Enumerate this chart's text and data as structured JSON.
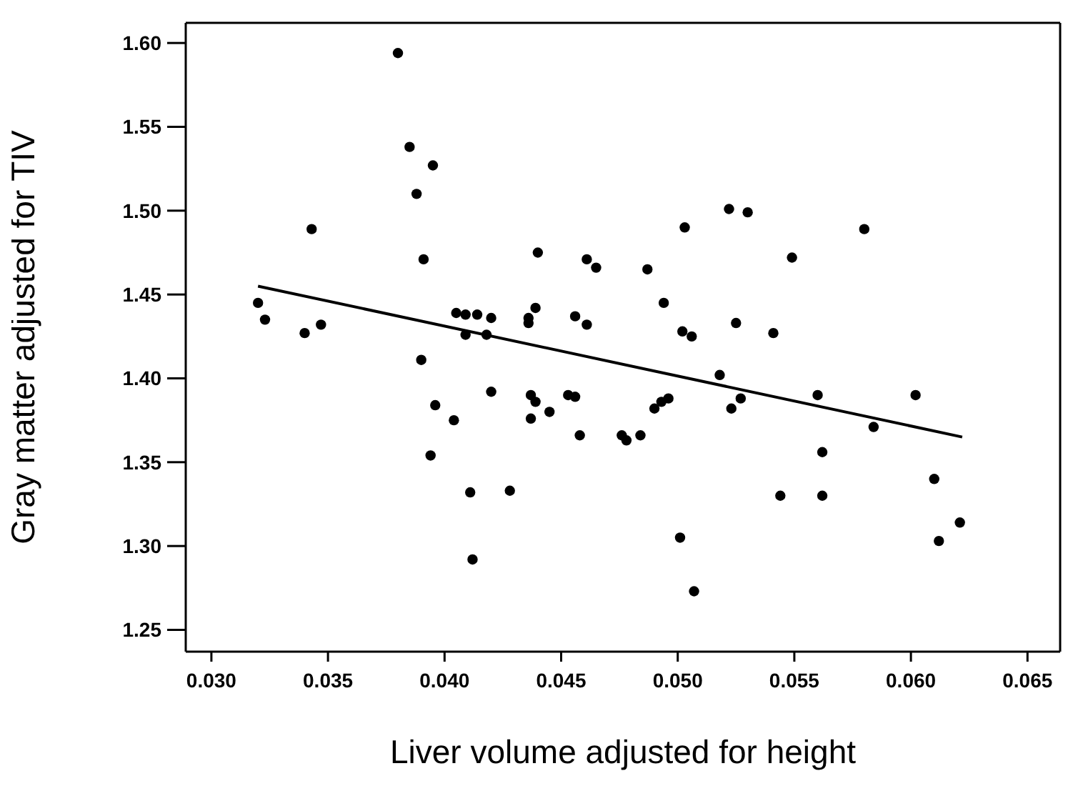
{
  "chart_data": {
    "type": "scatter",
    "xlabel": "Liver volume adjusted for height",
    "ylabel": "Gray matter adjusted for TIV",
    "xlim": [
      0.0289,
      0.0664
    ],
    "ylim": [
      1.237,
      1.612
    ],
    "xticks": [
      {
        "value": 0.03,
        "label": "0.030"
      },
      {
        "value": 0.035,
        "label": "0.035"
      },
      {
        "value": 0.04,
        "label": "0.040"
      },
      {
        "value": 0.045,
        "label": "0.045"
      },
      {
        "value": 0.05,
        "label": "0.050"
      },
      {
        "value": 0.055,
        "label": "0.055"
      },
      {
        "value": 0.06,
        "label": "0.060"
      },
      {
        "value": 0.065,
        "label": "0.065"
      }
    ],
    "yticks": [
      {
        "value": 1.25,
        "label": "1.25"
      },
      {
        "value": 1.3,
        "label": "1.30"
      },
      {
        "value": 1.35,
        "label": "1.35"
      },
      {
        "value": 1.4,
        "label": "1.40"
      },
      {
        "value": 1.45,
        "label": "1.45"
      },
      {
        "value": 1.5,
        "label": "1.50"
      },
      {
        "value": 1.55,
        "label": "1.55"
      },
      {
        "value": 1.6,
        "label": "1.60"
      }
    ],
    "series": [
      {
        "color": "#000000",
        "marker": "circle",
        "x": [
          0.038,
          0.0385,
          0.0395,
          0.0388,
          0.0343,
          0.0391,
          0.044,
          0.0461,
          0.0465,
          0.032,
          0.0323,
          0.034,
          0.0347,
          0.039,
          0.0405,
          0.0409,
          0.0414,
          0.042,
          0.0409,
          0.0418,
          0.0439,
          0.0436,
          0.0436,
          0.0456,
          0.0461,
          0.042,
          0.0437,
          0.0439,
          0.0445,
          0.0437,
          0.0453,
          0.0456,
          0.0396,
          0.0404,
          0.0394,
          0.0458,
          0.0476,
          0.0478,
          0.0484,
          0.0411,
          0.0428,
          0.0412,
          0.049,
          0.0493,
          0.0496,
          0.0518,
          0.0523,
          0.0527,
          0.056,
          0.0584,
          0.0602,
          0.0562,
          0.0544,
          0.0562,
          0.061,
          0.0621,
          0.0612,
          0.0501,
          0.0507,
          0.0522,
          0.053,
          0.0503,
          0.058,
          0.0487,
          0.0549,
          0.0494,
          0.0502,
          0.0506,
          0.0525,
          0.0541
        ],
        "values": [
          1.594,
          1.538,
          1.527,
          1.51,
          1.489,
          1.471,
          1.475,
          1.471,
          1.466,
          1.445,
          1.435,
          1.427,
          1.432,
          1.411,
          1.439,
          1.438,
          1.438,
          1.436,
          1.426,
          1.426,
          1.442,
          1.436,
          1.433,
          1.437,
          1.432,
          1.392,
          1.39,
          1.386,
          1.38,
          1.376,
          1.39,
          1.389,
          1.384,
          1.375,
          1.354,
          1.366,
          1.366,
          1.363,
          1.366,
          1.332,
          1.333,
          1.292,
          1.382,
          1.386,
          1.388,
          1.402,
          1.382,
          1.388,
          1.39,
          1.371,
          1.39,
          1.356,
          1.33,
          1.33,
          1.34,
          1.314,
          1.303,
          1.305,
          1.273,
          1.501,
          1.499,
          1.49,
          1.489,
          1.465,
          1.472,
          1.445,
          1.428,
          1.425,
          1.433,
          1.427
        ]
      },
      {
        "type": "line",
        "color": "#000000",
        "marker": "none",
        "line_style": "solid",
        "x": [
          0.032,
          0.0622
        ],
        "values": [
          1.455,
          1.365
        ]
      }
    ]
  }
}
